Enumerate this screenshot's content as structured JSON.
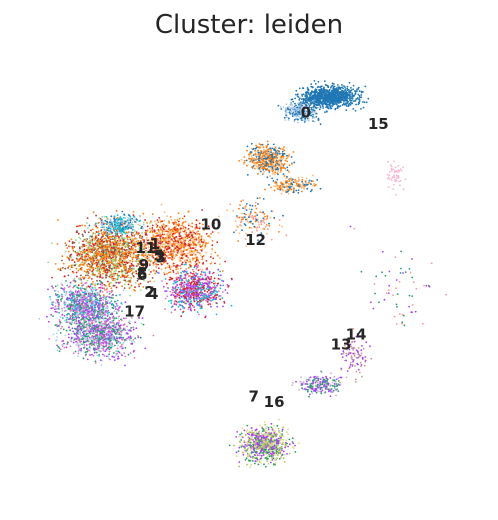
{
  "chart_data": {
    "type": "scatter",
    "title": "Cluster: leiden",
    "xlabel": "",
    "ylabel": "",
    "grid": false,
    "axes_visible": false,
    "legend": "on-data cluster labels",
    "colors": {
      "0": "#1f77b4",
      "1": "#ff7f0e",
      "2": "#279e68",
      "3": "#d62728",
      "4": "#aa40fc",
      "5": "#8c564b",
      "6": "#e377c2",
      "7": "#b5bd61",
      "8": "#17becf",
      "9": "#aec7e8",
      "10": "#ffbb78",
      "11": "#98df8a",
      "12": "#ff9896",
      "13": "#c5b0d5",
      "14": "#c49c94",
      "15": "#f7b6d2",
      "16": "#dbdb8d",
      "17": "#9edae5"
    },
    "clusters": [
      {
        "label": "0",
        "x": 6.6,
        "y": 8.8
      },
      {
        "label": "1",
        "x": -1.5,
        "y": 2.0
      },
      {
        "label": "2",
        "x": -1.8,
        "y": -0.5
      },
      {
        "label": "3",
        "x": -1.2,
        "y": 1.3
      },
      {
        "label": "4",
        "x": -1.6,
        "y": -0.6
      },
      {
        "label": "5",
        "x": -1.3,
        "y": 1.4
      },
      {
        "label": "6",
        "x": -2.2,
        "y": 0.4
      },
      {
        "label": "7",
        "x": 3.8,
        "y": -5.9
      },
      {
        "label": "8",
        "x": -2.2,
        "y": 0.5
      },
      {
        "label": "9",
        "x": -2.1,
        "y": 0.9
      },
      {
        "label": "10",
        "x": 1.5,
        "y": 3.0
      },
      {
        "label": "11",
        "x": -2.0,
        "y": 1.8
      },
      {
        "label": "12",
        "x": 3.9,
        "y": 2.2
      },
      {
        "label": "13",
        "x": 8.5,
        "y": -3.2
      },
      {
        "label": "14",
        "x": 9.3,
        "y": -2.7
      },
      {
        "label": "15",
        "x": 10.5,
        "y": 8.2
      },
      {
        "label": "16",
        "x": 4.9,
        "y": -6.2
      },
      {
        "label": "17",
        "x": -2.6,
        "y": -1.5
      }
    ]
  }
}
